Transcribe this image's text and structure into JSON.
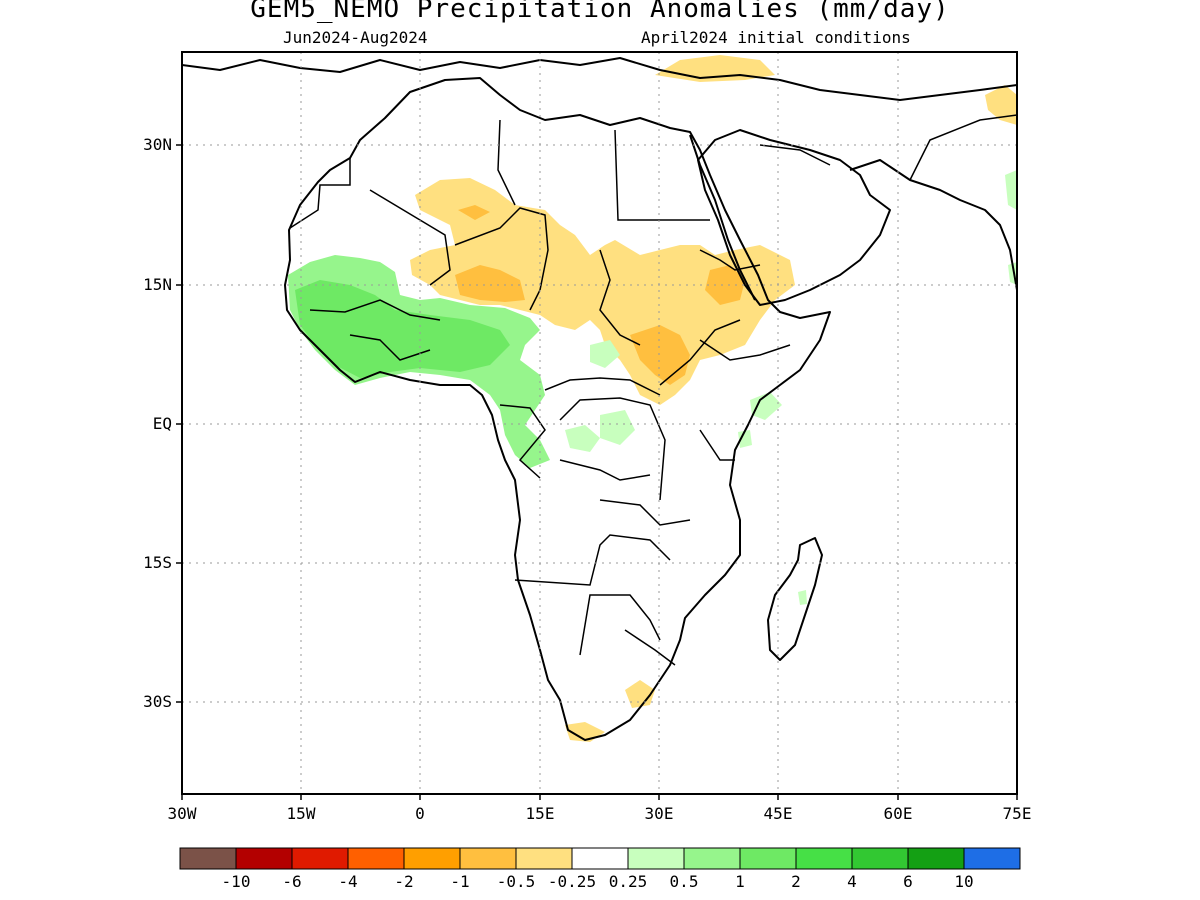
{
  "title": "GEM5_NEMO Precipitation Anomalies (mm/day)",
  "period": "Jun2024-Aug2024",
  "init": "April2024 initial conditions",
  "lat_ticks": [
    "30N",
    "15N",
    "EQ",
    "15S",
    "30S"
  ],
  "lon_ticks": [
    "30W",
    "15W",
    "0",
    "15E",
    "30E",
    "45E",
    "60E",
    "75E"
  ],
  "map_extent": {
    "lon": [
      -30,
      75
    ],
    "lat": [
      -40,
      40
    ]
  },
  "colorbar": {
    "labels": [
      "-10",
      "-6",
      "-4",
      "-2",
      "-1",
      "-0.5",
      "-0.25",
      "0.25",
      "0.5",
      "1",
      "2",
      "4",
      "6",
      "10"
    ],
    "colors": [
      "#7b5248",
      "#b30000",
      "#e01a00",
      "#ff6000",
      "#ff9f00",
      "#ffbf3f",
      "#ffe080",
      "#ffffff",
      "#c8ffbe",
      "#96f58c",
      "#6ee964",
      "#46e046",
      "#32c832",
      "#14a014",
      "#1e6ee6"
    ]
  },
  "colors": {
    "neg_light": "#ffe080",
    "neg_mid": "#ffbf3f",
    "pos_light": "#c8ffbe",
    "pos_mid": "#96f58c",
    "pos_strong": "#6ee964"
  }
}
